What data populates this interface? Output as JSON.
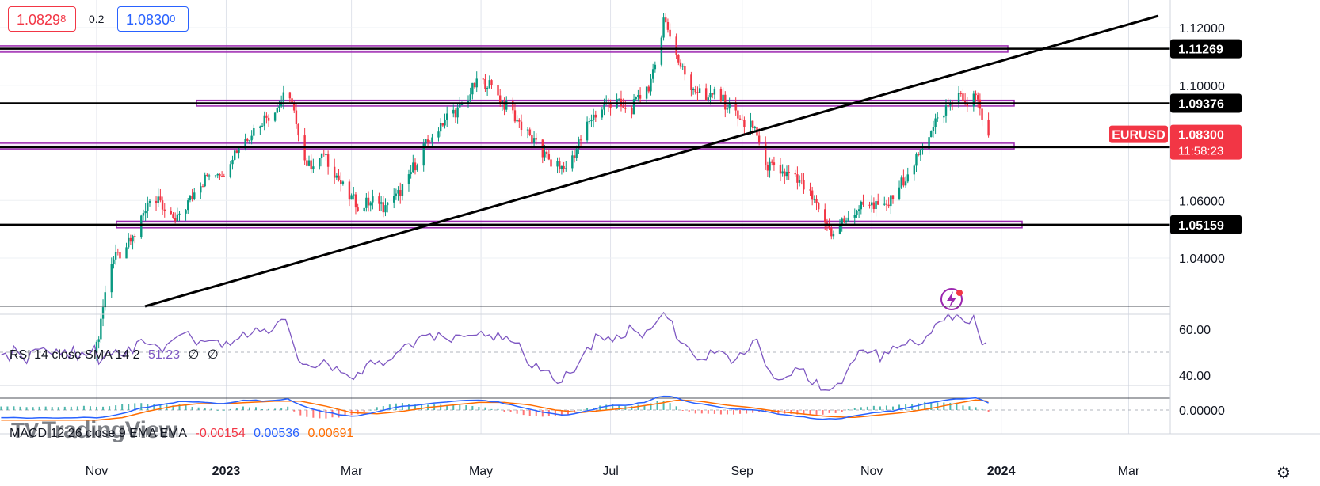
{
  "header": {
    "bid": "1.0829",
    "bid_sup": "8",
    "spread": "0.2",
    "ask": "1.0830",
    "ask_sup": "0"
  },
  "chart_data": {
    "type": "candlestick",
    "symbol": "EURUSD",
    "last_price": "1.08300",
    "countdown": "11:58:23",
    "price_axis": {
      "range": [
        1.025,
        1.1318
      ],
      "ticks": [
        "1.12000",
        "1.10000",
        "1.06000",
        "1.04000"
      ]
    },
    "time_axis": {
      "labels": [
        "Nov",
        "2023",
        "Mar",
        "May",
        "Jul",
        "Sep",
        "Nov",
        "2024",
        "Mar"
      ],
      "label_days": [
        0,
        61,
        120,
        181,
        242,
        304,
        365,
        426,
        486
      ]
    },
    "series": {
      "close_anchors": [
        [
          0,
          1.009
        ],
        [
          6,
          1.038
        ],
        [
          12,
          1.042
        ],
        [
          18,
          1.048
        ],
        [
          24,
          1.06
        ],
        [
          30,
          1.059
        ],
        [
          36,
          1.052
        ],
        [
          42,
          1.058
        ],
        [
          48,
          1.065
        ],
        [
          54,
          1.07
        ],
        [
          60,
          1.07
        ],
        [
          64,
          1.076
        ],
        [
          72,
          1.083
        ],
        [
          78,
          1.088
        ],
        [
          84,
          1.091
        ],
        [
          90,
          1.098
        ],
        [
          93,
          1.09
        ],
        [
          96,
          1.076
        ],
        [
          100,
          1.072
        ],
        [
          106,
          1.076
        ],
        [
          112,
          1.07
        ],
        [
          118,
          1.062
        ],
        [
          124,
          1.058
        ],
        [
          130,
          1.06
        ],
        [
          136,
          1.057
        ],
        [
          142,
          1.062
        ],
        [
          148,
          1.07
        ],
        [
          154,
          1.078
        ],
        [
          160,
          1.085
        ],
        [
          166,
          1.09
        ],
        [
          172,
          1.092
        ],
        [
          178,
          1.1
        ],
        [
          184,
          1.101
        ],
        [
          190,
          1.095
        ],
        [
          196,
          1.09
        ],
        [
          202,
          1.084
        ],
        [
          208,
          1.078
        ],
        [
          214,
          1.073
        ],
        [
          220,
          1.071
        ],
        [
          226,
          1.078
        ],
        [
          232,
          1.088
        ],
        [
          238,
          1.092
        ],
        [
          244,
          1.095
        ],
        [
          250,
          1.09
        ],
        [
          256,
          1.096
        ],
        [
          260,
          1.1
        ],
        [
          264,
          1.107
        ],
        [
          267,
          1.123
        ],
        [
          270,
          1.118
        ],
        [
          274,
          1.108
        ],
        [
          280,
          1.1
        ],
        [
          286,
          1.096
        ],
        [
          292,
          1.097
        ],
        [
          298,
          1.092
        ],
        [
          304,
          1.087
        ],
        [
          310,
          1.085
        ],
        [
          316,
          1.072
        ],
        [
          322,
          1.07
        ],
        [
          328,
          1.068
        ],
        [
          334,
          1.064
        ],
        [
          340,
          1.056
        ],
        [
          346,
          1.049
        ],
        [
          352,
          1.053
        ],
        [
          358,
          1.057
        ],
        [
          364,
          1.06
        ],
        [
          370,
          1.056
        ],
        [
          376,
          1.062
        ],
        [
          382,
          1.07
        ],
        [
          388,
          1.076
        ],
        [
          394,
          1.087
        ],
        [
          400,
          1.092
        ],
        [
          406,
          1.096
        ],
        [
          410,
          1.094
        ],
        [
          412,
          1.1
        ],
        [
          414,
          1.096
        ],
        [
          417,
          1.088
        ],
        [
          420,
          1.083
        ]
      ]
    },
    "levels": [
      "1.11269",
      "1.09376",
      "1.07852",
      "1.05159"
    ],
    "rsi": {
      "legend_label": "RSI 14 close SMA 14 2",
      "value": "51.23",
      "extra1": "∅",
      "extra2": "∅",
      "ticks": [
        "60.00",
        "40.00"
      ],
      "anchors": [
        [
          0,
          45
        ],
        [
          6,
          50
        ],
        [
          12,
          48
        ],
        [
          18,
          52
        ],
        [
          24,
          55
        ],
        [
          30,
          50
        ],
        [
          36,
          53
        ],
        [
          42,
          58
        ],
        [
          48,
          54
        ],
        [
          54,
          56
        ],
        [
          60,
          52
        ],
        [
          66,
          58
        ],
        [
          72,
          57
        ],
        [
          78,
          60
        ],
        [
          84,
          61
        ],
        [
          90,
          63
        ],
        [
          96,
          45
        ],
        [
          102,
          42
        ],
        [
          108,
          46
        ],
        [
          114,
          41
        ],
        [
          120,
          38
        ],
        [
          126,
          42
        ],
        [
          132,
          48
        ],
        [
          138,
          45
        ],
        [
          144,
          50
        ],
        [
          150,
          55
        ],
        [
          156,
          58
        ],
        [
          162,
          56
        ],
        [
          168,
          57
        ],
        [
          174,
          55
        ],
        [
          180,
          58
        ],
        [
          186,
          56
        ],
        [
          192,
          57
        ],
        [
          198,
          53
        ],
        [
          204,
          45
        ],
        [
          210,
          42
        ],
        [
          216,
          38
        ],
        [
          222,
          40
        ],
        [
          228,
          45
        ],
        [
          234,
          55
        ],
        [
          240,
          58
        ],
        [
          246,
          56
        ],
        [
          252,
          60
        ],
        [
          258,
          56
        ],
        [
          264,
          66
        ],
        [
          268,
          68
        ],
        [
          274,
          55
        ],
        [
          280,
          50
        ],
        [
          286,
          47
        ],
        [
          292,
          50
        ],
        [
          298,
          46
        ],
        [
          304,
          48
        ],
        [
          310,
          56
        ],
        [
          316,
          42
        ],
        [
          322,
          40
        ],
        [
          328,
          42
        ],
        [
          334,
          40
        ],
        [
          340,
          36
        ],
        [
          346,
          32
        ],
        [
          352,
          40
        ],
        [
          358,
          48
        ],
        [
          364,
          52
        ],
        [
          370,
          47
        ],
        [
          376,
          52
        ],
        [
          382,
          54
        ],
        [
          388,
          54
        ],
        [
          394,
          60
        ],
        [
          400,
          66
        ],
        [
          406,
          64
        ],
        [
          410,
          63
        ],
        [
          412,
          66
        ],
        [
          416,
          57
        ],
        [
          420,
          51.23
        ]
      ]
    },
    "macd": {
      "legend_label": "MACD 12 26 close 9 EMA EMA",
      "hist": "-0.00154",
      "macd": "0.00536",
      "signal": "0.00691",
      "ticks": [
        "0.00000"
      ],
      "macd_anchors": [
        [
          0,
          -0.006
        ],
        [
          10,
          -0.004
        ],
        [
          20,
          0.001
        ],
        [
          30,
          0.004
        ],
        [
          40,
          0.007
        ],
        [
          50,
          0.006
        ],
        [
          60,
          0.005
        ],
        [
          70,
          0.008
        ],
        [
          80,
          0.007
        ],
        [
          90,
          0.009
        ],
        [
          96,
          0.004
        ],
        [
          104,
          0.0
        ],
        [
          112,
          -0.003
        ],
        [
          120,
          -0.005
        ],
        [
          128,
          -0.003
        ],
        [
          136,
          0.0
        ],
        [
          144,
          0.003
        ],
        [
          152,
          0.004
        ],
        [
          160,
          0.006
        ],
        [
          170,
          0.007
        ],
        [
          180,
          0.008
        ],
        [
          190,
          0.006
        ],
        [
          200,
          0.002
        ],
        [
          210,
          -0.002
        ],
        [
          220,
          -0.004
        ],
        [
          230,
          -0.001
        ],
        [
          240,
          0.003
        ],
        [
          250,
          0.004
        ],
        [
          258,
          0.006
        ],
        [
          266,
          0.011
        ],
        [
          272,
          0.01
        ],
        [
          280,
          0.006
        ],
        [
          290,
          0.003
        ],
        [
          300,
          0.001
        ],
        [
          310,
          0.0
        ],
        [
          320,
          -0.003
        ],
        [
          330,
          -0.005
        ],
        [
          340,
          -0.007
        ],
        [
          350,
          -0.007
        ],
        [
          358,
          -0.004
        ],
        [
          366,
          -0.002
        ],
        [
          374,
          -0.001
        ],
        [
          382,
          0.002
        ],
        [
          390,
          0.005
        ],
        [
          400,
          0.008
        ],
        [
          408,
          0.009
        ],
        [
          414,
          0.01
        ],
        [
          420,
          0.00536
        ]
      ],
      "signal_anchors": [
        [
          0,
          -0.008
        ],
        [
          12,
          -0.006
        ],
        [
          24,
          -0.001
        ],
        [
          36,
          0.003
        ],
        [
          48,
          0.005
        ],
        [
          60,
          0.005
        ],
        [
          72,
          0.006
        ],
        [
          84,
          0.007
        ],
        [
          96,
          0.007
        ],
        [
          108,
          0.003
        ],
        [
          120,
          -0.002
        ],
        [
          132,
          -0.003
        ],
        [
          144,
          -0.001
        ],
        [
          156,
          0.002
        ],
        [
          168,
          0.004
        ],
        [
          180,
          0.006
        ],
        [
          192,
          0.006
        ],
        [
          204,
          0.004
        ],
        [
          216,
          0.0
        ],
        [
          228,
          -0.002
        ],
        [
          240,
          0.0
        ],
        [
          252,
          0.002
        ],
        [
          264,
          0.005
        ],
        [
          274,
          0.008
        ],
        [
          284,
          0.007
        ],
        [
          296,
          0.004
        ],
        [
          308,
          0.002
        ],
        [
          320,
          -0.001
        ],
        [
          332,
          -0.003
        ],
        [
          344,
          -0.005
        ],
        [
          356,
          -0.006
        ],
        [
          368,
          -0.004
        ],
        [
          380,
          -0.002
        ],
        [
          392,
          0.001
        ],
        [
          404,
          0.005
        ],
        [
          414,
          0.008
        ],
        [
          420,
          0.00691
        ]
      ]
    }
  },
  "watermark": {
    "logo": "TV",
    "text": "TradingView"
  },
  "icons": {
    "settings": "settings-icon",
    "alert": "lightning-alert-icon"
  },
  "colors": {
    "up": "#089981",
    "down": "#f23645",
    "rsi": "#7e57c2",
    "macd": "#2962ff",
    "signal": "#ff6d00",
    "zone": "#9c27b0"
  }
}
